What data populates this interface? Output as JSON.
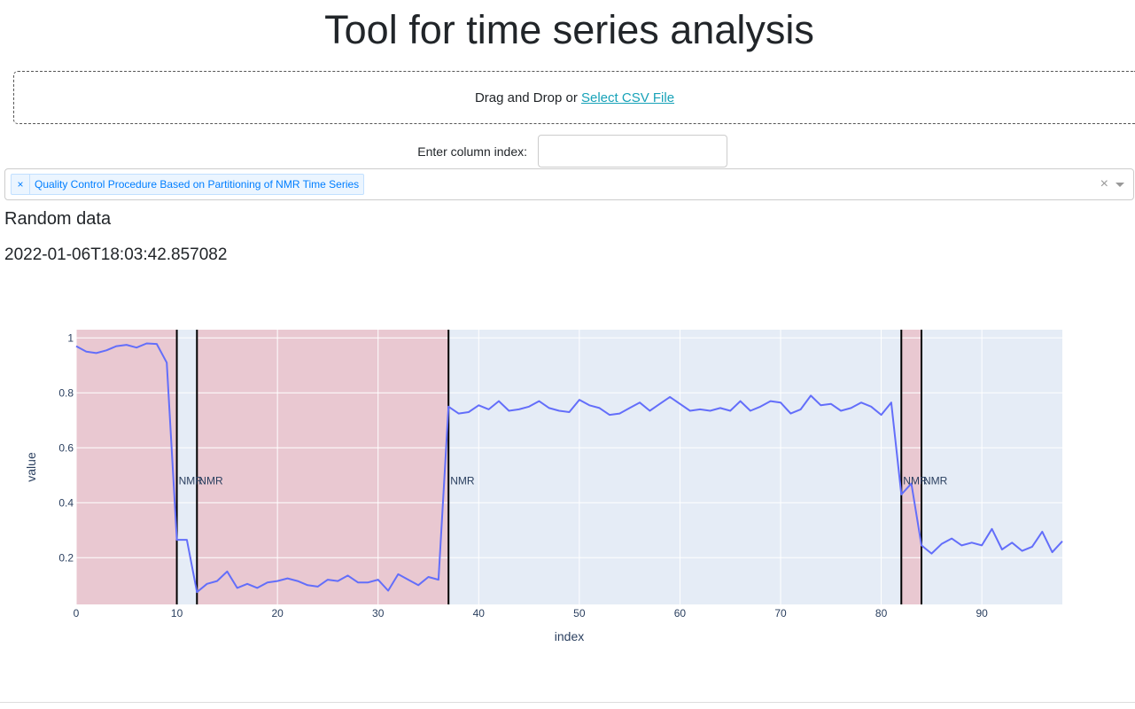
{
  "header": {
    "title": "Tool for time series analysis"
  },
  "upload": {
    "prefix": "Drag and Drop or ",
    "link": "Select CSV File"
  },
  "column": {
    "label": "Enter column index:",
    "value": ""
  },
  "dropdown": {
    "selected": [
      "Quality Control Procedure Based on Partitioning of NMR Time Series"
    ],
    "remove_glyph": "×",
    "clear_glyph": "×"
  },
  "dataset": {
    "name": "Random data",
    "timestamp": "2022-01-06T18:03:42.857082"
  },
  "colors": {
    "line": "#636efa",
    "shade": "#e9c8d1",
    "plot_bg": "#e5ecf6",
    "link": "#17a2b8"
  },
  "chart_data": {
    "type": "line",
    "xlabel": "index",
    "ylabel": "value",
    "xlim": [
      0,
      98
    ],
    "ylim": [
      0.03,
      1.03
    ],
    "xticks": [
      0,
      10,
      20,
      30,
      40,
      50,
      60,
      70,
      80,
      90
    ],
    "yticks": [
      0.2,
      0.4,
      0.6,
      0.8,
      1
    ],
    "x": [
      0,
      1,
      2,
      3,
      4,
      5,
      6,
      7,
      8,
      9,
      10,
      11,
      12,
      13,
      14,
      15,
      16,
      17,
      18,
      19,
      20,
      21,
      22,
      23,
      24,
      25,
      26,
      27,
      28,
      29,
      30,
      31,
      32,
      33,
      34,
      35,
      36,
      37,
      38,
      39,
      40,
      41,
      42,
      43,
      44,
      45,
      46,
      47,
      48,
      49,
      50,
      51,
      52,
      53,
      54,
      55,
      56,
      57,
      58,
      59,
      60,
      61,
      62,
      63,
      64,
      65,
      66,
      67,
      68,
      69,
      70,
      71,
      72,
      73,
      74,
      75,
      76,
      77,
      78,
      79,
      80,
      81,
      82,
      83,
      84,
      85,
      86,
      87,
      88,
      89,
      90,
      91,
      92,
      93,
      94,
      95,
      96,
      97,
      98
    ],
    "y": [
      0.97,
      0.95,
      0.945,
      0.955,
      0.97,
      0.975,
      0.965,
      0.98,
      0.978,
      0.91,
      0.265,
      0.265,
      0.075,
      0.105,
      0.115,
      0.15,
      0.09,
      0.105,
      0.09,
      0.11,
      0.115,
      0.125,
      0.115,
      0.1,
      0.095,
      0.12,
      0.115,
      0.135,
      0.11,
      0.11,
      0.12,
      0.08,
      0.14,
      0.12,
      0.1,
      0.13,
      0.12,
      0.75,
      0.725,
      0.73,
      0.755,
      0.74,
      0.77,
      0.735,
      0.74,
      0.75,
      0.77,
      0.745,
      0.735,
      0.73,
      0.775,
      0.755,
      0.745,
      0.72,
      0.725,
      0.745,
      0.765,
      0.735,
      0.76,
      0.785,
      0.76,
      0.735,
      0.74,
      0.735,
      0.745,
      0.735,
      0.77,
      0.735,
      0.75,
      0.77,
      0.765,
      0.725,
      0.74,
      0.79,
      0.755,
      0.76,
      0.735,
      0.745,
      0.765,
      0.75,
      0.72,
      0.765,
      0.43,
      0.47,
      0.245,
      0.215,
      0.25,
      0.27,
      0.245,
      0.255,
      0.245,
      0.305,
      0.23,
      0.255,
      0.225,
      0.24,
      0.295,
      0.22,
      0.26
    ],
    "shaded_regions": [
      [
        0,
        10
      ],
      [
        12,
        37
      ],
      [
        82,
        84
      ]
    ],
    "change_points": [
      10,
      12,
      37,
      82,
      84
    ],
    "change_point_label": "NMR",
    "annotation_y": 0.48
  }
}
